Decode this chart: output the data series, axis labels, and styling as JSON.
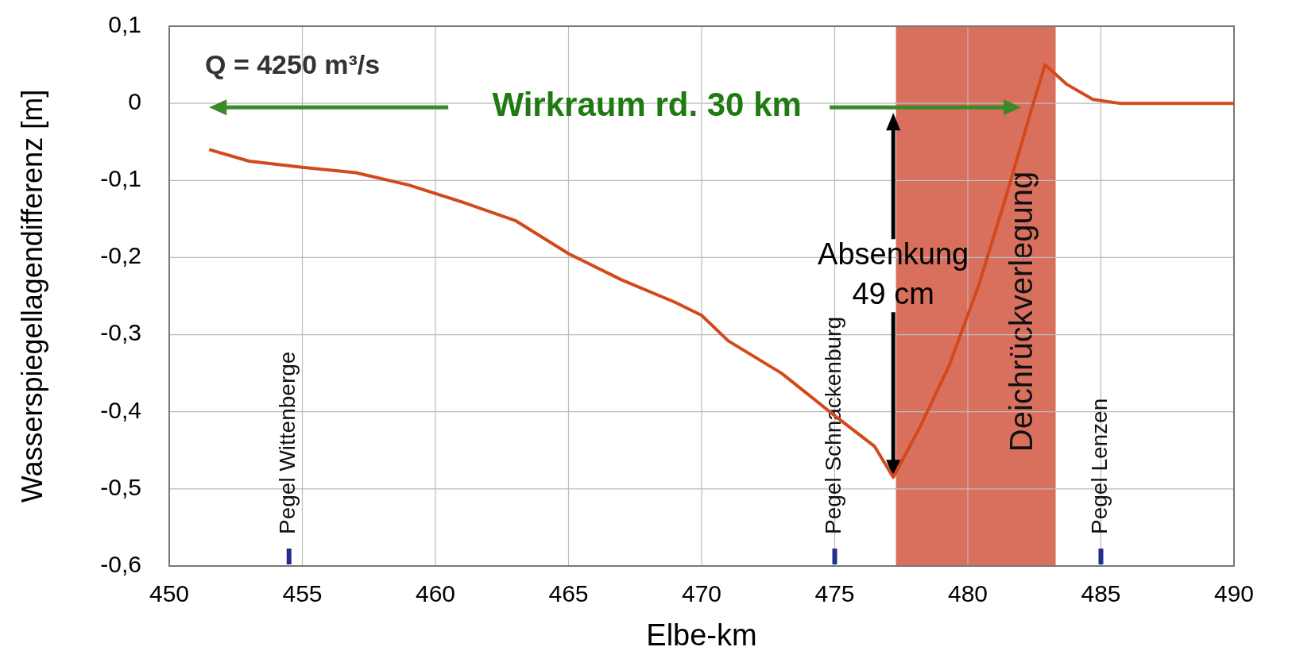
{
  "chart_data": {
    "type": "line",
    "xlabel": "Elbe-km",
    "ylabel": "Wasserspiegellagendifferenz  [m]",
    "xlim": [
      450,
      490
    ],
    "xticks": [
      450,
      455,
      460,
      465,
      470,
      475,
      480,
      485,
      490
    ],
    "ylim": [
      -0.6,
      0.1
    ],
    "yticks": [
      {
        "value": -0.6,
        "label": "-0,6"
      },
      {
        "value": -0.5,
        "label": "-0,5"
      },
      {
        "value": -0.4,
        "label": "-0,4"
      },
      {
        "value": -0.3,
        "label": "-0,3"
      },
      {
        "value": -0.2,
        "label": "-0,2"
      },
      {
        "value": -0.1,
        "label": "-0,1"
      },
      {
        "value": 0,
        "label": "0"
      },
      {
        "value": 0.1,
        "label": "0,1"
      }
    ],
    "grid": true,
    "series": [
      {
        "color": "#d2491c",
        "x": [
          451.5,
          453,
          455,
          457,
          459,
          461,
          463,
          465,
          467,
          469,
          470,
          471,
          473,
          475,
          476.5,
          477.2,
          478.2,
          479.3,
          480.4,
          481.4,
          482.4,
          482.9,
          483.7,
          484.7,
          485.7,
          490
        ],
        "values": [
          -0.06,
          -0.075,
          -0.083,
          -0.09,
          -0.106,
          -0.128,
          -0.152,
          -0.195,
          -0.229,
          -0.258,
          -0.275,
          -0.308,
          -0.35,
          -0.405,
          -0.445,
          -0.485,
          -0.42,
          -0.34,
          -0.237,
          -0.125,
          -0.007,
          0.05,
          0.025,
          0.005,
          0,
          0
        ]
      }
    ],
    "bands": [
      {
        "axis": "x",
        "from": 477.3,
        "to": 483.3,
        "label": "Deichrückverlegung",
        "color": "#d9705e"
      }
    ],
    "annotations": [
      {
        "text": "Q = 4250 m³/s"
      },
      "Wirkraum rd. 30 km",
      {
        "text": "Absenkung 49 cm",
        "x": 477.2,
        "y": -0.24
      },
      "Pegel Wittenberge",
      "Pegel Schnackenburg",
      "Pegel Lenzen"
    ]
  }
}
